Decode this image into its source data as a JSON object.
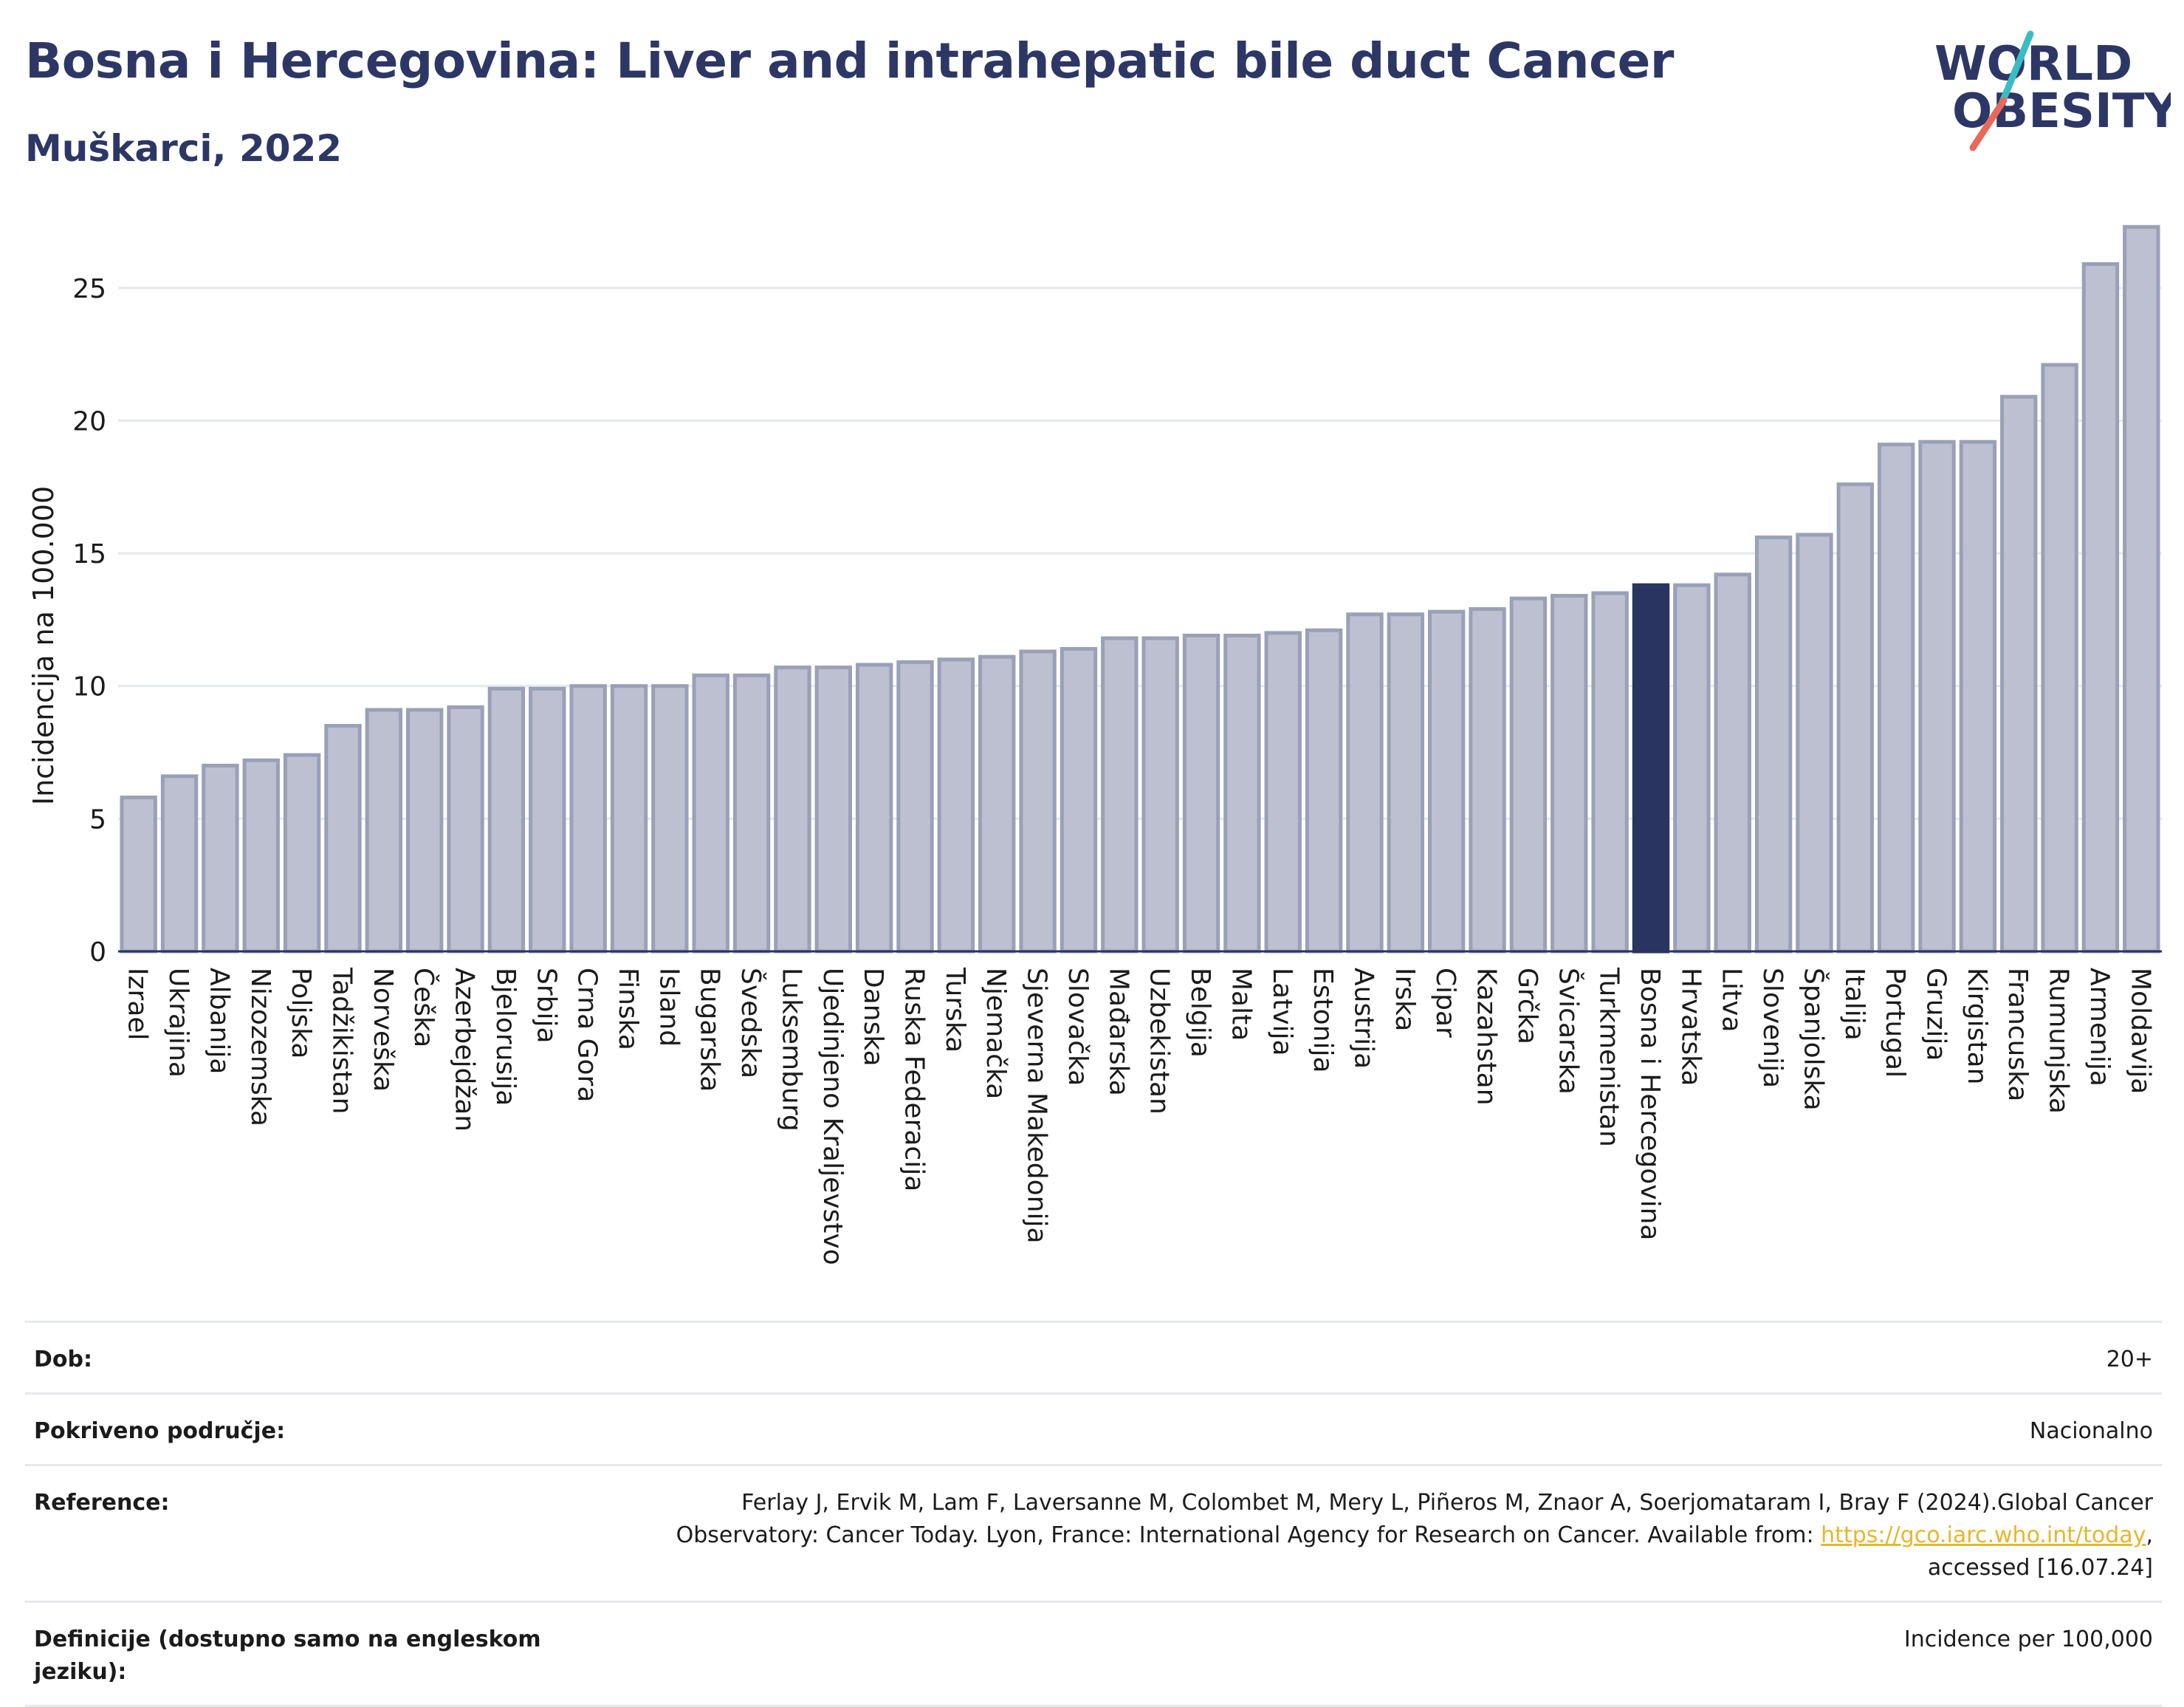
{
  "header": {
    "title": "Bosna i Hercegovina: Liver and intrahepatic bile duct Cancer",
    "subtitle": "Muškarci, 2022"
  },
  "logo": {
    "line1": "WORLD",
    "line2": "OBESITY"
  },
  "colors": {
    "bar": "#bcc0d0",
    "bar_stroke": "#9aa0b8",
    "highlight": "#2a3460",
    "grid": "#e6e8ee",
    "logo_text": "#2d3765",
    "logo_slash_teal": "#3bbcc4",
    "logo_slash_coral": "#e8695a"
  },
  "chart_data": {
    "type": "bar",
    "ylabel": "Incidencija na 100.000",
    "xlabel": "",
    "ylim": [
      0,
      27.5
    ],
    "yticks": [
      0,
      5,
      10,
      15,
      20,
      25
    ],
    "grid": true,
    "highlight": "Bosna i Hercegovina",
    "categories": [
      "Izrael",
      "Ukrajina",
      "Albanija",
      "Nizozemska",
      "Poljska",
      "Tadžikistan",
      "Norveška",
      "Češka",
      "Azerbejdžan",
      "Bjelorusija",
      "Srbija",
      "Crna Gora",
      "Finska",
      "Island",
      "Bugarska",
      "Švedska",
      "Luksemburg",
      "Ujedinjeno Kraljevstvo",
      "Danska",
      "Ruska Federacija",
      "Turska",
      "Njemačka",
      "Sjeverna Makedonija",
      "Slovačka",
      "Mađarska",
      "Uzbekistan",
      "Belgija",
      "Malta",
      "Latvija",
      "Estonija",
      "Austrija",
      "Irska",
      "Cipar",
      "Kazahstan",
      "Grčka",
      "Švicarska",
      "Turkmenistan",
      "Bosna i Hercegovina",
      "Hrvatska",
      "Litva",
      "Slovenija",
      "Španjolska",
      "Italija",
      "Portugal",
      "Gruzija",
      "Kirgistan",
      "Francuska",
      "Rumunjska",
      "Armenija",
      "Moldavija"
    ],
    "values": [
      5.8,
      6.6,
      7.0,
      7.2,
      7.4,
      8.5,
      9.1,
      9.1,
      9.2,
      9.9,
      9.9,
      10.0,
      10.0,
      10.0,
      10.4,
      10.4,
      10.7,
      10.7,
      10.8,
      10.9,
      11.0,
      11.1,
      11.3,
      11.4,
      11.8,
      11.8,
      11.9,
      11.9,
      12.0,
      12.1,
      12.7,
      12.7,
      12.8,
      12.9,
      13.3,
      13.4,
      13.5,
      13.8,
      13.8,
      14.2,
      15.6,
      15.7,
      17.6,
      19.1,
      19.2,
      19.2,
      20.9,
      22.1,
      25.9,
      27.3
    ]
  },
  "info": {
    "rows": [
      {
        "label": "Dob:",
        "value": "20+"
      },
      {
        "label": "Pokriveno područje:",
        "value": "Nacionalno"
      },
      {
        "label": "Reference:",
        "value_pre": "Ferlay J, Ervik M, Lam F, Laversanne M, Colombet M, Mery L, Piñeros M, Znaor A, Soerjomataram I, Bray F (2024).Global Cancer Observatory: Cancer Today. Lyon, France: International Agency for Research on Cancer. Available from: ",
        "link": "https://gco.iarc.who.int/today",
        "value_post": ", accessed [16.07.24]"
      },
      {
        "label": "Definicije (dostupno samo na engleskom jeziku):",
        "value": "Incidence per 100,000"
      }
    ]
  }
}
